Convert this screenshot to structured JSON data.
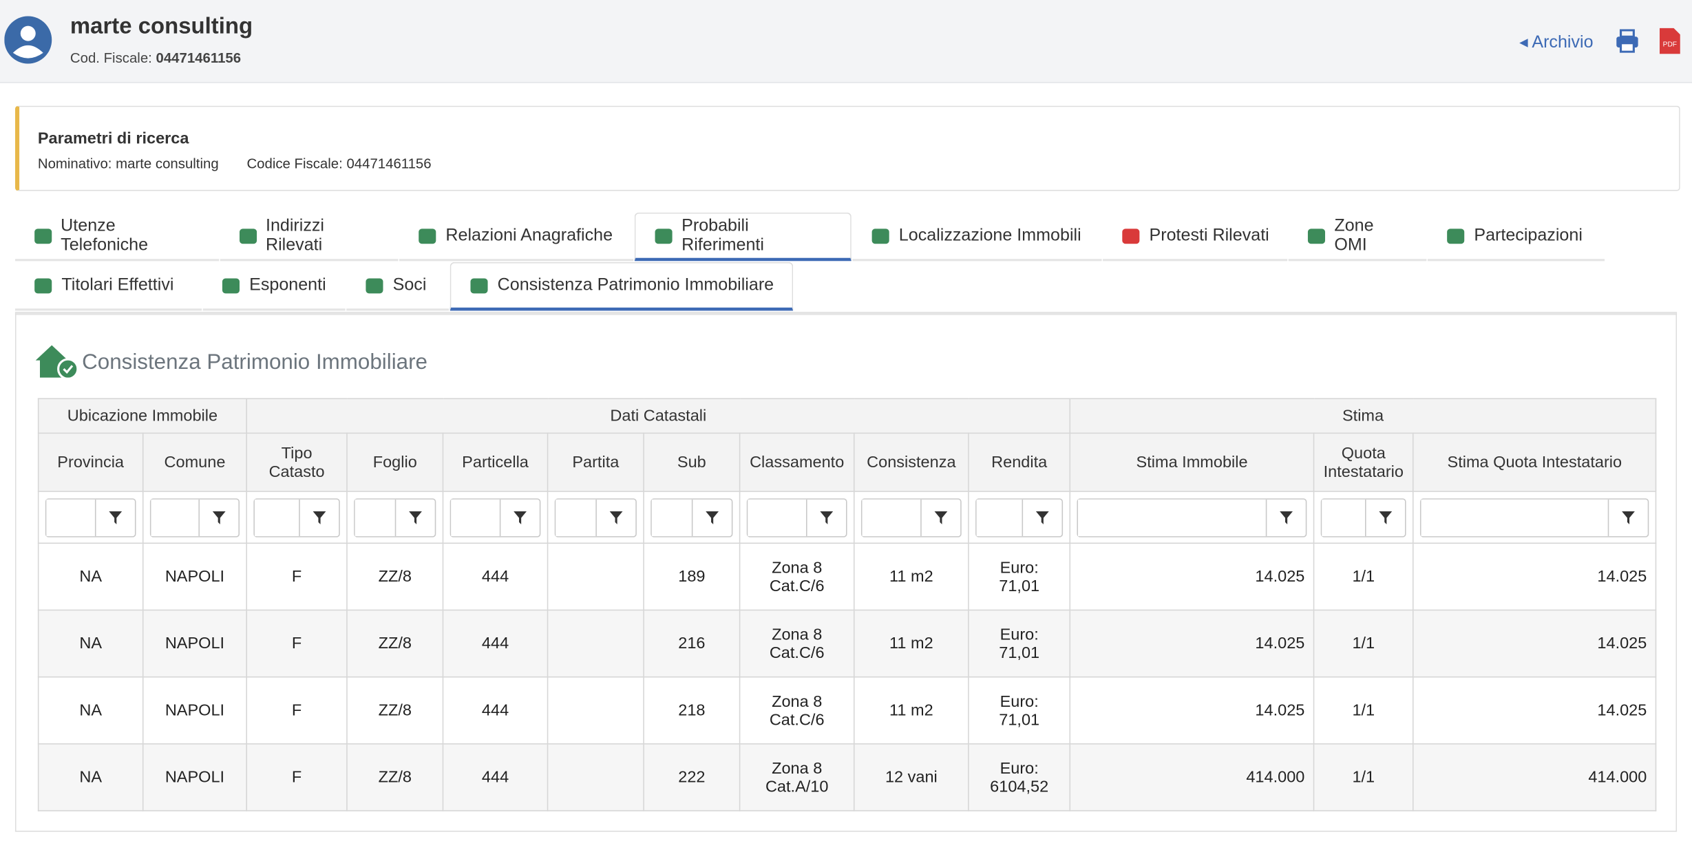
{
  "header": {
    "name": "marte consulting",
    "cf_label": "Cod. Fiscale:",
    "cf_value": "04471461156",
    "archive": "Archivio",
    "pdf": "PDF"
  },
  "search": {
    "title": "Parametri di ricerca",
    "nominativo_label": "Nominativo:",
    "nominativo_value": "marte consulting",
    "cf_label": "Codice Fiscale:",
    "cf_value": "04471461156"
  },
  "tabs": {
    "row1": [
      "Utenze Telefoniche",
      "Indirizzi Rilevati",
      "Relazioni Anagrafiche",
      "Probabili Riferimenti",
      "Localizzazione Immobili",
      "Protesti Rilevati",
      "Zone OMI",
      "Partecipazioni"
    ],
    "row2": [
      "Titolari Effettivi",
      "Esponenti",
      "Soci",
      "Consistenza Patrimonio Immobiliare"
    ]
  },
  "section": {
    "title": "Consistenza Patrimonio Immobiliare"
  },
  "table": {
    "groups": [
      "Ubicazione Immobile",
      "Dati Catastali",
      "Stima"
    ],
    "columns": [
      "Provincia",
      "Comune",
      "Tipo Catasto",
      "Foglio",
      "Particella",
      "Partita",
      "Sub",
      "Classamento",
      "Consistenza",
      "Rendita",
      "Stima Immobile",
      "Quota Intestatario",
      "Stima Quota Intestatario"
    ],
    "rows": [
      [
        "NA",
        "NAPOLI",
        "F",
        "ZZ/8",
        "444",
        null,
        "189",
        "Zona 8 Cat.C/6",
        "11 m2",
        "Euro: 71,01",
        "14.025",
        "1/1",
        "14.025"
      ],
      [
        "NA",
        "NAPOLI",
        "F",
        "ZZ/8",
        "444",
        null,
        "216",
        "Zona 8 Cat.C/6",
        "11 m2",
        "Euro: 71,01",
        "14.025",
        "1/1",
        "14.025"
      ],
      [
        "NA",
        "NAPOLI",
        "F",
        "ZZ/8",
        "444",
        null,
        "218",
        "Zona 8 Cat.C/6",
        "11 m2",
        "Euro: 71,01",
        "14.025",
        "1/1",
        "14.025"
      ],
      [
        "NA",
        "NAPOLI",
        "F",
        "ZZ/8",
        "444",
        null,
        "222",
        "Zona 8 Cat.A/10",
        "12 vani",
        "Euro: 6104,52",
        "414.000",
        "1/1",
        "414.000"
      ]
    ]
  }
}
